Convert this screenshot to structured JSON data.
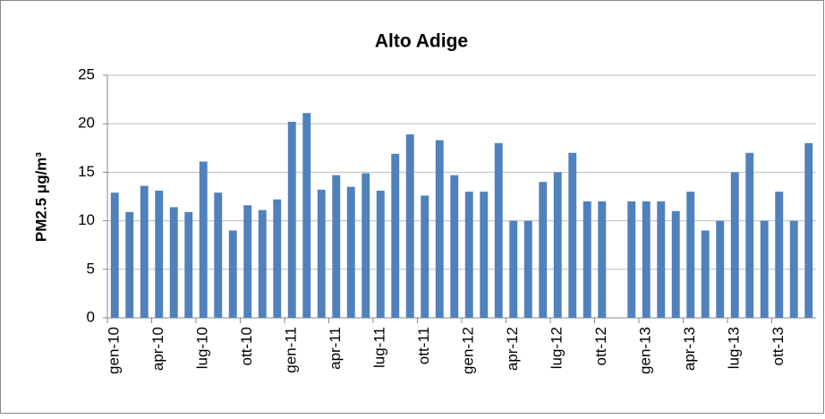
{
  "chart_data": {
    "type": "bar",
    "title": "Alto Adige",
    "y_label": "PM2.5 μg/m³",
    "categories": [
      "gen-10",
      null,
      null,
      "apr-10",
      null,
      null,
      "lug-10",
      null,
      null,
      "ott-10",
      null,
      null,
      "gen-11",
      null,
      null,
      "apr-11",
      null,
      null,
      "lug-11",
      null,
      null,
      "ott-11",
      null,
      null,
      "gen-12",
      null,
      null,
      "apr-12",
      null,
      null,
      "lug-12",
      null,
      null,
      "ott-12",
      null,
      null,
      "gen-13",
      null,
      null,
      "apr-13",
      null,
      null,
      "lug-13",
      null,
      null,
      "ott-13",
      null,
      null
    ],
    "values": [
      12.9,
      10.9,
      13.6,
      13.1,
      11.4,
      10.9,
      16.1,
      12.9,
      9.0,
      11.6,
      11.1,
      12.2,
      20.2,
      21.1,
      13.2,
      14.7,
      13.5,
      14.9,
      13.1,
      16.9,
      18.9,
      12.6,
      18.3,
      14.7,
      13,
      13,
      18,
      10,
      10,
      14,
      15,
      17,
      12,
      12,
      null,
      12,
      12,
      12,
      11,
      13,
      9,
      10,
      15,
      17,
      10,
      13,
      10,
      18
    ],
    "color": "#4f81bd",
    "ylim": [
      0,
      25
    ],
    "yticks": [
      0,
      5,
      10,
      15,
      20,
      25
    ],
    "grid": true
  }
}
